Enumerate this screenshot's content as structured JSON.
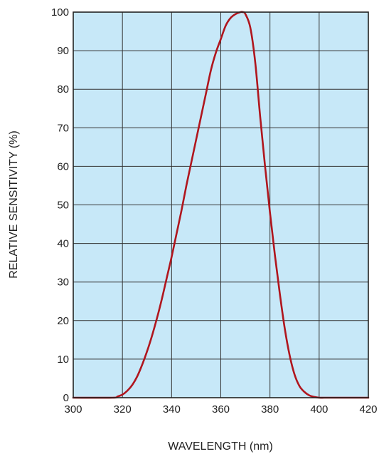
{
  "chart_data": {
    "type": "line",
    "title": "",
    "xlabel": "WAVELENGTH (nm)",
    "ylabel": "RELATIVE SENSITIVITY (%)",
    "xlim": [
      300,
      420
    ],
    "ylim": [
      0,
      100
    ],
    "x_ticks": [
      300,
      320,
      340,
      360,
      380,
      400,
      420
    ],
    "y_ticks": [
      0,
      10,
      20,
      30,
      40,
      50,
      60,
      70,
      80,
      90,
      100
    ],
    "grid": true,
    "legend": "none",
    "colors": {
      "plot_background": "#c7e8f8",
      "grid": "#333333",
      "line": "#b0161e"
    },
    "series": [
      {
        "name": "",
        "x": [
          300,
          316,
          318,
          320,
          322,
          324,
          326,
          328,
          330,
          332,
          334,
          336,
          338,
          340,
          342,
          344,
          346,
          348,
          350,
          352,
          354,
          356,
          358,
          360,
          362,
          364,
          366,
          368,
          369,
          370,
          372,
          374,
          376,
          378,
          380,
          382,
          384,
          386,
          388,
          390,
          392,
          394,
          396,
          398,
          400,
          402,
          404,
          420
        ],
        "y": [
          0,
          0,
          0.3,
          0.8,
          1.8,
          3.3,
          5.5,
          8.5,
          12,
          16,
          20.5,
          25.5,
          31,
          36.5,
          42.5,
          48.5,
          55,
          61,
          67,
          73,
          79,
          85,
          89.5,
          93,
          96.5,
          98.5,
          99.5,
          100,
          100,
          99.5,
          96,
          87,
          73,
          60,
          48,
          37,
          27,
          18,
          11,
          6,
          3,
          1.5,
          0.6,
          0.2,
          0,
          0,
          0,
          0
        ]
      }
    ]
  }
}
